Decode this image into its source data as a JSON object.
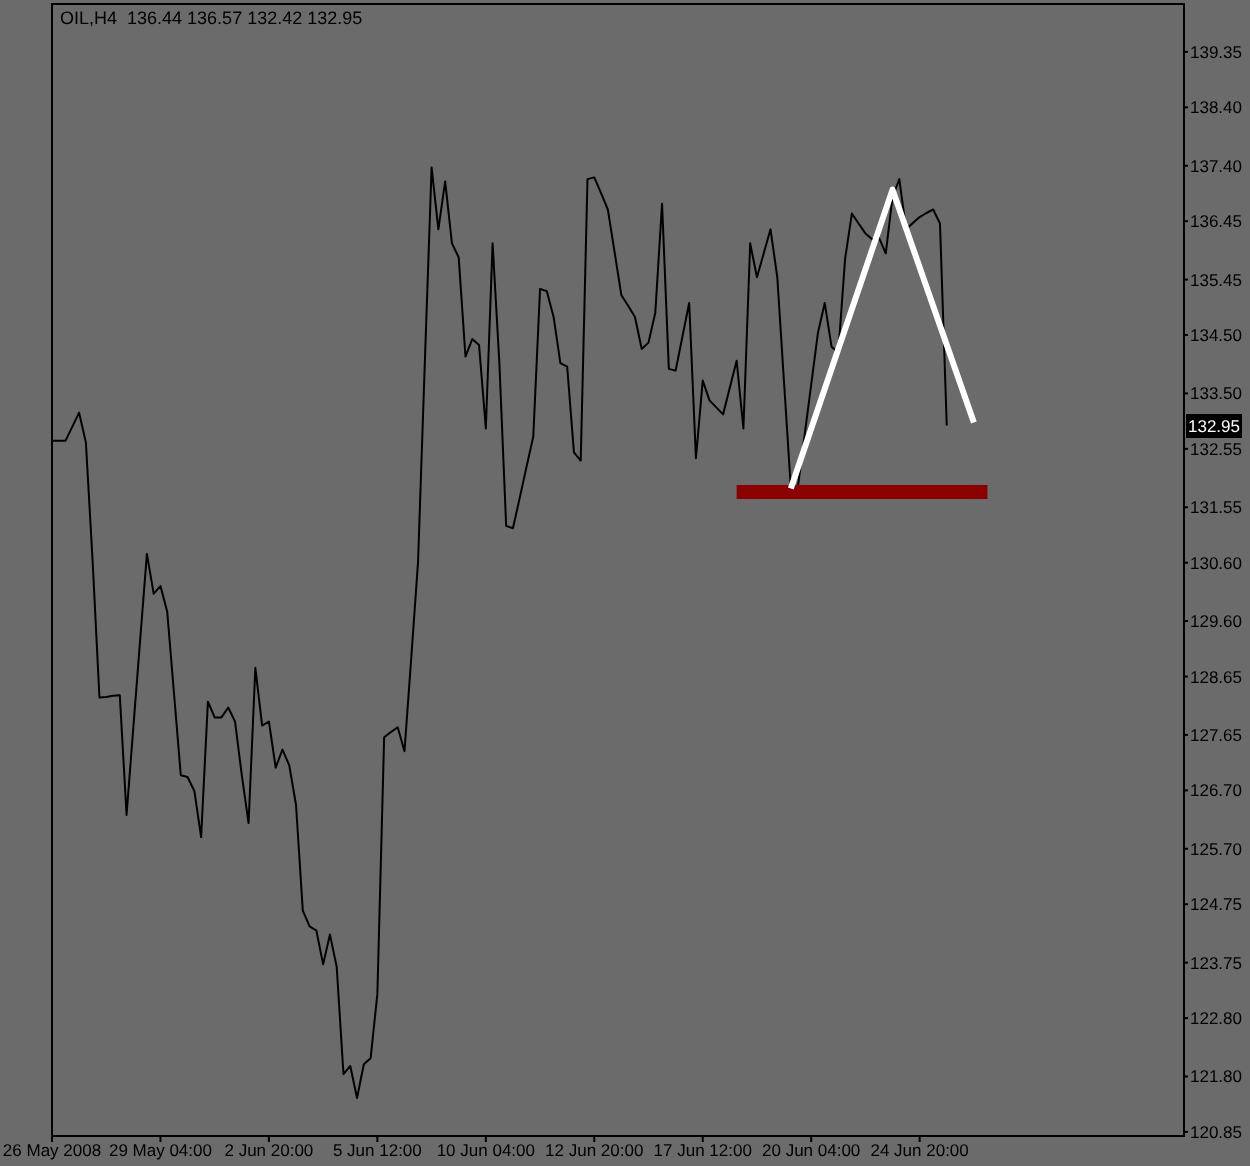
{
  "chart_data": {
    "type": "line",
    "title": "OIL,H4  136.44 136.57 132.42 132.95",
    "categories": [
      "26 May 2008",
      null,
      null,
      null,
      null,
      null,
      null,
      null,
      null,
      null,
      null,
      null,
      null,
      null,
      null,
      null,
      "29 May 04:00",
      null,
      null,
      null,
      null,
      null,
      null,
      null,
      null,
      null,
      null,
      null,
      null,
      null,
      null,
      null,
      "2 Jun 20:00",
      null,
      null,
      null,
      null,
      null,
      null,
      null,
      null,
      null,
      null,
      null,
      null,
      null,
      null,
      null,
      "5 Jun 12:00",
      null,
      null,
      null,
      null,
      null,
      null,
      null,
      null,
      null,
      null,
      null,
      null,
      null,
      null,
      null,
      "10 Jun 04:00",
      null,
      null,
      null,
      null,
      null,
      null,
      null,
      null,
      null,
      null,
      null,
      null,
      null,
      null,
      null,
      "12 Jun 20:00",
      null,
      null,
      null,
      null,
      null,
      null,
      null,
      null,
      null,
      null,
      null,
      null,
      null,
      null,
      null,
      "17 Jun 12:00",
      null,
      null,
      null,
      null,
      null,
      null,
      null,
      null,
      null,
      null,
      null,
      null,
      null,
      null,
      null,
      "20 Jun 04:00",
      null,
      null,
      null,
      null,
      null,
      null,
      null,
      null,
      null,
      null,
      null,
      null,
      null,
      null,
      null,
      "24 Jun 20:00",
      null,
      null,
      null,
      null,
      null,
      null,
      null,
      null,
      null,
      null,
      null,
      null,
      null,
      null,
      null,
      null,
      null,
      null,
      null,
      null,
      null,
      null,
      null,
      null,
      null,
      null,
      null,
      null,
      null,
      null,
      null,
      null,
      null,
      null,
      null,
      null,
      null,
      null,
      null
    ],
    "ylim": [
      120.78,
      140.17
    ],
    "yticks": [
      {
        "value": 120.85,
        "label": "120.85"
      },
      {
        "value": 121.8,
        "label": "121.80"
      },
      {
        "value": 122.8,
        "label": "122.80"
      },
      {
        "value": 123.75,
        "label": "123.75"
      },
      {
        "value": 124.75,
        "label": "124.75"
      },
      {
        "value": 125.7,
        "label": "125.70"
      },
      {
        "value": 126.7,
        "label": "126.70"
      },
      {
        "value": 127.65,
        "label": "127.65"
      },
      {
        "value": 128.65,
        "label": "128.65"
      },
      {
        "value": 129.6,
        "label": "129.60"
      },
      {
        "value": 130.6,
        "label": "130.60"
      },
      {
        "value": 131.55,
        "label": "131.55"
      },
      {
        "value": 132.55,
        "label": "132.55"
      },
      {
        "value": 133.5,
        "label": "133.50"
      },
      {
        "value": 134.5,
        "label": "134.50"
      },
      {
        "value": 135.45,
        "label": "135.45"
      },
      {
        "value": 136.45,
        "label": "136.45"
      },
      {
        "value": 137.4,
        "label": "137.40"
      },
      {
        "value": 138.4,
        "label": "138.40"
      },
      {
        "value": 139.35,
        "label": "139.35"
      }
    ],
    "grid": false,
    "legend": false,
    "marker": "none",
    "line_style": "solid",
    "annotations": [
      {
        "text": "132.95",
        "y": 132.95
      }
    ],
    "series": [
      {
        "color": "#000000",
        "values": [
          132.69,
          132.69,
          132.69,
          132.93,
          133.17,
          132.66,
          130.61,
          128.29,
          128.3,
          128.32,
          128.33,
          126.28,
          127.78,
          129.27,
          130.75,
          130.07,
          130.2,
          129.76,
          128.36,
          126.96,
          126.93,
          126.69,
          125.9,
          128.22,
          127.95,
          127.95,
          128.12,
          127.88,
          126.96,
          126.14,
          128.8,
          127.81,
          127.88,
          127.09,
          127.4,
          127.13,
          126.45,
          124.64,
          124.37,
          124.3,
          123.72,
          124.23,
          123.68,
          121.84,
          121.98,
          121.43,
          122.01,
          122.11,
          123.21,
          127.61,
          127.7,
          127.78,
          127.37,
          128.97,
          130.61,
          134.02,
          137.37,
          136.31,
          137.13,
          136.07,
          135.83,
          134.13,
          134.43,
          134.33,
          132.9,
          136.07,
          134.02,
          131.23,
          131.19,
          131.71,
          132.24,
          132.76,
          135.29,
          135.25,
          134.81,
          134.02,
          133.96,
          132.49,
          132.35,
          137.17,
          137.2,
          136.93,
          136.65,
          135.92,
          135.18,
          135.0,
          134.81,
          134.26,
          134.37,
          134.88,
          136.75,
          133.92,
          133.89,
          134.47,
          135.05,
          132.39,
          133.72,
          133.38,
          133.26,
          133.14,
          133.6,
          134.06,
          132.9,
          136.07,
          135.49,
          135.9,
          136.31,
          135.49,
          133.68,
          131.87,
          131.87,
          132.76,
          133.65,
          134.54,
          135.05,
          134.3,
          134.2,
          135.8,
          136.58,
          136.41,
          136.24,
          136.14,
          136.17,
          135.9,
          136.86,
          137.17,
          136.31,
          136.42,
          136.52,
          136.59,
          136.65,
          136.41,
          132.95,
          null,
          null,
          null,
          null,
          null,
          null,
          null,
          null,
          null,
          null,
          null,
          null,
          null,
          null,
          null,
          null,
          null,
          null,
          null,
          null,
          null,
          null,
          null,
          null,
          null,
          null,
          null,
          null,
          null,
          null,
          null,
          null,
          null,
          null,
          null
        ]
      },
      {
        "color": "#8b0000",
        "values": [
          null,
          null,
          null,
          null,
          null,
          null,
          null,
          null,
          null,
          null,
          null,
          null,
          null,
          null,
          null,
          null,
          null,
          null,
          null,
          null,
          null,
          null,
          null,
          null,
          null,
          null,
          null,
          null,
          null,
          null,
          null,
          null,
          null,
          null,
          null,
          null,
          null,
          null,
          null,
          null,
          null,
          null,
          null,
          null,
          null,
          null,
          null,
          null,
          null,
          null,
          null,
          null,
          null,
          null,
          null,
          null,
          null,
          null,
          null,
          null,
          null,
          null,
          null,
          null,
          null,
          null,
          null,
          null,
          null,
          null,
          null,
          null,
          null,
          null,
          null,
          null,
          null,
          null,
          null,
          null,
          null,
          null,
          null,
          null,
          null,
          null,
          null,
          null,
          null,
          null,
          null,
          null,
          null,
          null,
          null,
          null,
          null,
          null,
          null,
          null,
          null,
          131.81,
          null,
          null,
          null,
          null,
          null,
          null,
          null,
          null,
          null,
          null,
          null,
          null,
          null,
          null,
          null,
          null,
          null,
          null,
          null,
          null,
          null,
          null,
          null,
          null,
          null,
          null,
          null,
          null,
          null,
          null,
          null,
          null,
          null,
          null,
          null,
          null,
          131.81,
          null,
          null,
          null,
          null,
          null,
          null,
          null,
          null,
          null,
          null,
          null,
          null,
          null,
          null,
          null,
          null,
          null,
          null,
          null,
          null,
          null,
          null,
          null,
          null,
          null,
          null,
          null,
          null,
          null
        ]
      },
      {
        "color": "#ffffff",
        "values": [
          null,
          null,
          null,
          null,
          null,
          null,
          null,
          null,
          null,
          null,
          null,
          null,
          null,
          null,
          null,
          null,
          null,
          null,
          null,
          null,
          null,
          null,
          null,
          null,
          null,
          null,
          null,
          null,
          null,
          null,
          null,
          null,
          null,
          null,
          null,
          null,
          null,
          null,
          null,
          null,
          null,
          null,
          null,
          null,
          null,
          null,
          null,
          null,
          null,
          null,
          null,
          null,
          null,
          null,
          null,
          null,
          null,
          null,
          null,
          null,
          null,
          null,
          null,
          null,
          null,
          null,
          null,
          null,
          null,
          null,
          null,
          null,
          null,
          null,
          null,
          null,
          null,
          null,
          null,
          null,
          null,
          null,
          null,
          null,
          null,
          null,
          null,
          null,
          null,
          null,
          null,
          null,
          null,
          null,
          null,
          null,
          null,
          null,
          null,
          null,
          null,
          null,
          null,
          null,
          null,
          null,
          null,
          null,
          null,
          131.87,
          null,
          null,
          null,
          null,
          null,
          null,
          null,
          null,
          null,
          null,
          null,
          null,
          null,
          null,
          136.99,
          null,
          null,
          null,
          null,
          null,
          null,
          null,
          null,
          null,
          null,
          null,
          133.0,
          null,
          null,
          null,
          null,
          null,
          null,
          null,
          null,
          null,
          null,
          null,
          null,
          null,
          null,
          null,
          null,
          null,
          null,
          null,
          null,
          null,
          null,
          null,
          null,
          null,
          null,
          null,
          null,
          null,
          null,
          null
        ]
      }
    ]
  }
}
